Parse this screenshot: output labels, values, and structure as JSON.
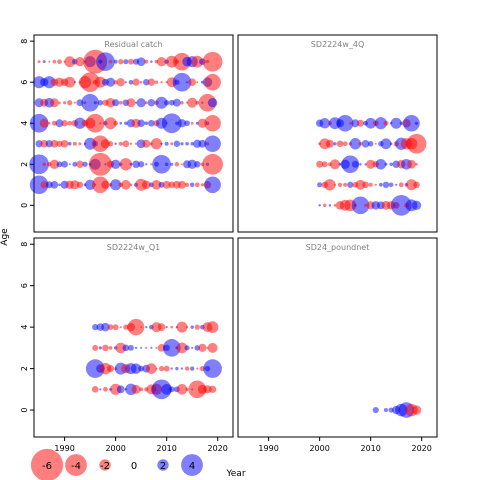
{
  "chart_data": {
    "type": "scatter",
    "xlabel": "Year",
    "ylabel": "Age",
    "xticks": [
      1990,
      2000,
      2010,
      2020
    ],
    "yticks": [
      0,
      2,
      4,
      6,
      8
    ],
    "xlim": [
      1984,
      2023
    ],
    "ylim": [
      -1.3,
      8.3
    ],
    "colors": {
      "positive": "#0000ff",
      "negative": "#ff0000",
      "zero": "#000000"
    },
    "legend": {
      "placement": "bottom-left",
      "values": [
        -6,
        -4,
        -2,
        0,
        2,
        4
      ],
      "labels": [
        "-6",
        "-4",
        "-2",
        "0",
        "2",
        "4"
      ]
    },
    "panels": [
      {
        "title": "Residual catch",
        "years": [
          1985,
          2019
        ],
        "ages": [
          1,
          2,
          3,
          4,
          5,
          6,
          7
        ],
        "highlights": [
          {
            "year": 1996,
            "age": 7,
            "value": -4.4
          },
          {
            "year": 1998,
            "age": 7,
            "value": 3.4
          },
          {
            "year": 2013,
            "age": 7,
            "value": -3.2
          },
          {
            "year": 2019,
            "age": 7,
            "value": -3.6
          },
          {
            "year": 1995,
            "age": 6,
            "value": -3.6
          },
          {
            "year": 2013,
            "age": 6,
            "value": 3.4
          },
          {
            "year": 2019,
            "age": 6,
            "value": -3.0
          },
          {
            "year": 1995,
            "age": 5,
            "value": 3.2
          },
          {
            "year": 2018,
            "age": 5,
            "value": -3.2
          },
          {
            "year": 1985,
            "age": 4,
            "value": 3.4
          },
          {
            "year": 1996,
            "age": 4,
            "value": -3.4
          },
          {
            "year": 2011,
            "age": 4,
            "value": 3.6
          },
          {
            "year": 2019,
            "age": 4,
            "value": -3.0
          },
          {
            "year": 1997,
            "age": 3,
            "value": -3.0
          },
          {
            "year": 2019,
            "age": 3,
            "value": 3.0
          },
          {
            "year": 1985,
            "age": 2,
            "value": 3.6
          },
          {
            "year": 1997,
            "age": 2,
            "value": -4.2
          },
          {
            "year": 2009,
            "age": 2,
            "value": 3.4
          },
          {
            "year": 2019,
            "age": 2,
            "value": -3.8
          },
          {
            "year": 1985,
            "age": 1,
            "value": 3.4
          },
          {
            "year": 1997,
            "age": 1,
            "value": -3.0
          },
          {
            "year": 2019,
            "age": 1,
            "value": 3.0
          }
        ]
      },
      {
        "title": "SD2224w_4Q",
        "years": [
          2000,
          2019
        ],
        "ages": [
          0,
          1,
          2,
          3,
          4
        ],
        "highlights": [
          {
            "year": 2019,
            "age": 3,
            "value": -3.6
          },
          {
            "year": 2018,
            "age": 4,
            "value": 3.0
          },
          {
            "year": 2016,
            "age": 0,
            "value": 3.8
          },
          {
            "year": 2008,
            "age": 0,
            "value": 3.2
          },
          {
            "year": 2006,
            "age": 2,
            "value": 3.2
          },
          {
            "year": 2005,
            "age": 4,
            "value": 3.0
          }
        ]
      },
      {
        "title": "SD2224w_Q1",
        "years": [
          1996,
          2019
        ],
        "ages": [
          1,
          2,
          3,
          4
        ],
        "highlights": [
          {
            "year": 1996,
            "age": 2,
            "value": 3.4
          },
          {
            "year": 2019,
            "age": 2,
            "value": 3.4
          },
          {
            "year": 2009,
            "age": 1,
            "value": 3.6
          },
          {
            "year": 2011,
            "age": 3,
            "value": 3.2
          },
          {
            "year": 2016,
            "age": 1,
            "value": -3.2
          },
          {
            "year": 2004,
            "age": 4,
            "value": -3.0
          }
        ]
      },
      {
        "title": "SD24_poundnet",
        "years": [
          2011,
          2019
        ],
        "ages": [
          0
        ],
        "points": [
          {
            "year": 2011,
            "age": 0,
            "value": 1.0
          },
          {
            "year": 2013,
            "age": 0,
            "value": 0.6
          },
          {
            "year": 2014,
            "age": 0,
            "value": 0.8
          },
          {
            "year": 2015,
            "age": 0,
            "value": 1.4
          },
          {
            "year": 2016,
            "age": 0,
            "value": 2.2
          },
          {
            "year": 2017,
            "age": 0,
            "value": 2.8
          },
          {
            "year": 2018,
            "age": 0,
            "value": -2.2
          },
          {
            "year": 2019,
            "age": 0,
            "value": -1.6
          }
        ]
      }
    ]
  }
}
